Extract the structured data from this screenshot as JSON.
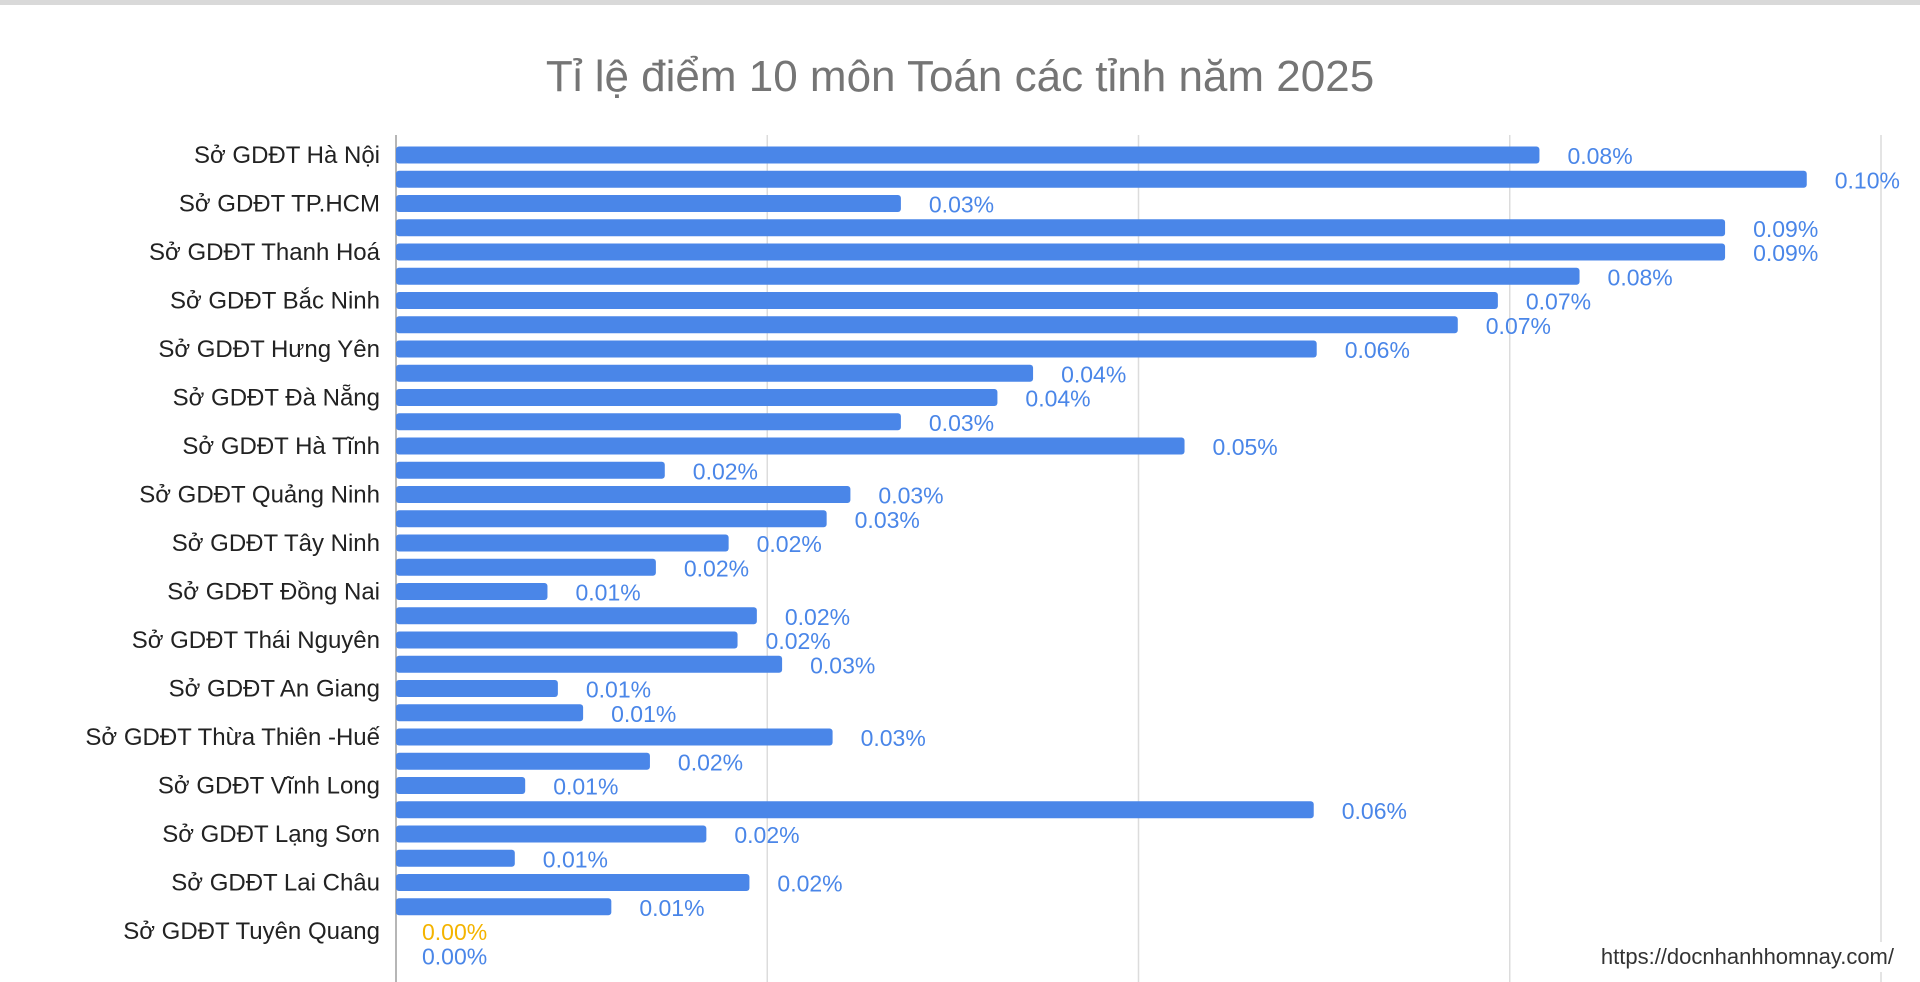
{
  "chart_data": {
    "type": "bar",
    "orientation": "horizontal",
    "title": "Tỉ lệ điểm 10 môn Toán các tỉnh năm 2025",
    "xlabel": "",
    "ylabel": "",
    "xlim": [
      0,
      0.1
    ],
    "grid": true,
    "unit": "%",
    "bar_color": "#4a86e8",
    "label_color": "#4a86e8",
    "highlight_label_color": "#f4b400",
    "category_labels": [
      "Sở GDĐT Hà Nội",
      "Sở GDĐT TP.HCM",
      "Sở GDĐT Thanh Hoá",
      "Sở GDĐT Bắc Ninh",
      "Sở GDĐT Hưng Yên",
      "Sở GDĐT Đà Nẵng",
      "Sở GDĐT Hà Tĩnh",
      "Sở GDĐT Quảng Ninh",
      "Sở GDĐT Tây Ninh",
      "Sở GDĐT Đồng Nai",
      "Sở GDĐT Thái Nguyên",
      "Sở GDĐT An Giang",
      "Sở GDĐT Thừa Thiên -Huế",
      "Sở GDĐT Vĩnh Long",
      "Sở GDĐT Lạng Sơn",
      "Sở GDĐT Lai Châu",
      "Sở GDĐT Tuyên Quang"
    ],
    "bars": [
      {
        "value": 0.077,
        "label": "0.08%"
      },
      {
        "value": 0.095,
        "label": "0.10%"
      },
      {
        "value": 0.034,
        "label": "0.03%"
      },
      {
        "value": 0.0895,
        "label": "0.09%"
      },
      {
        "value": 0.0895,
        "label": "0.09%"
      },
      {
        "value": 0.0797,
        "label": "0.08%"
      },
      {
        "value": 0.0742,
        "label": "0.07%"
      },
      {
        "value": 0.0715,
        "label": "0.07%"
      },
      {
        "value": 0.062,
        "label": "0.06%"
      },
      {
        "value": 0.0429,
        "label": "0.04%"
      },
      {
        "value": 0.0405,
        "label": "0.04%"
      },
      {
        "value": 0.034,
        "label": "0.03%"
      },
      {
        "value": 0.0531,
        "label": "0.05%"
      },
      {
        "value": 0.0181,
        "label": "0.02%"
      },
      {
        "value": 0.0306,
        "label": "0.03%"
      },
      {
        "value": 0.029,
        "label": "0.03%"
      },
      {
        "value": 0.0224,
        "label": "0.02%"
      },
      {
        "value": 0.0175,
        "label": "0.02%"
      },
      {
        "value": 0.0102,
        "label": "0.01%"
      },
      {
        "value": 0.0243,
        "label": "0.02%"
      },
      {
        "value": 0.023,
        "label": "0.02%"
      },
      {
        "value": 0.026,
        "label": "0.03%"
      },
      {
        "value": 0.0109,
        "label": "0.01%"
      },
      {
        "value": 0.0126,
        "label": "0.01%"
      },
      {
        "value": 0.0294,
        "label": "0.03%"
      },
      {
        "value": 0.0171,
        "label": "0.02%"
      },
      {
        "value": 0.0087,
        "label": "0.01%"
      },
      {
        "value": 0.0618,
        "label": "0.06%"
      },
      {
        "value": 0.0209,
        "label": "0.02%"
      },
      {
        "value": 0.008,
        "label": "0.01%"
      },
      {
        "value": 0.0238,
        "label": "0.02%"
      },
      {
        "value": 0.0145,
        "label": "0.01%"
      },
      {
        "value": 0,
        "label": "0.00%",
        "highlight": true
      },
      {
        "value": 0,
        "label": "0.00%"
      }
    ]
  },
  "watermark": "https://docnhanhhomnay.com/"
}
